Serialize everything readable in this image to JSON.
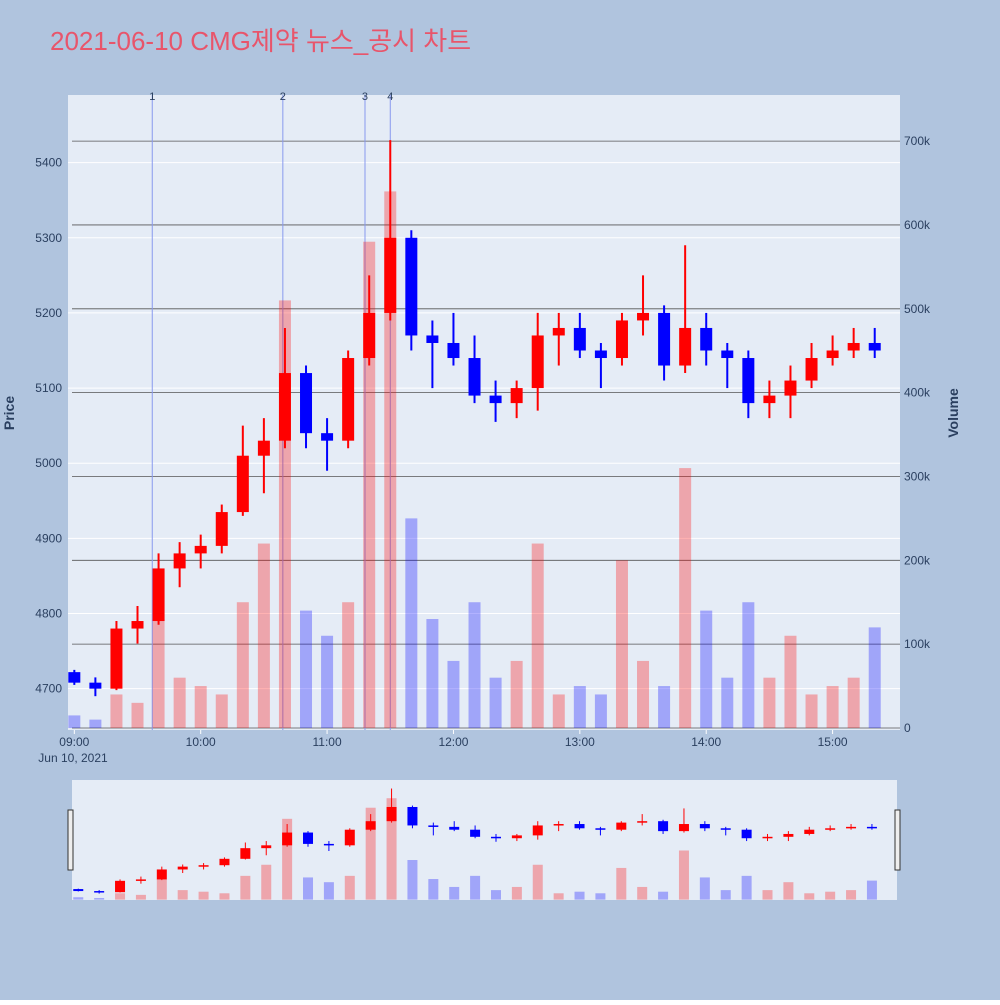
{
  "chart_data": {
    "type": "candlestick",
    "title": "2021-06-10 CMG제약 뉴스_공시 차트",
    "y_title": "Price",
    "y2_title": "Volume",
    "x_date_label": "Jun 10, 2021",
    "increasing_color": "#ff0000",
    "decreasing_color": "#0000ff",
    "x": [
      "09:00",
      "09:10",
      "09:20",
      "09:30",
      "09:40",
      "09:50",
      "10:00",
      "10:10",
      "10:20",
      "10:30",
      "10:40",
      "10:50",
      "11:00",
      "11:10",
      "11:20",
      "11:30",
      "11:40",
      "11:50",
      "12:00",
      "12:10",
      "12:20",
      "12:30",
      "12:40",
      "12:50",
      "13:00",
      "13:10",
      "13:20",
      "13:30",
      "13:40",
      "13:50",
      "14:00",
      "14:10",
      "14:20",
      "14:30",
      "14:40",
      "14:50",
      "15:00",
      "15:10",
      "15:20"
    ],
    "open": [
      4722,
      4708,
      4700,
      4780,
      4790,
      4860,
      4880,
      4890,
      4935,
      5010,
      5030,
      5120,
      5040,
      5030,
      5140,
      5200,
      5300,
      5170,
      5160,
      5140,
      5090,
      5080,
      5100,
      5170,
      5180,
      5150,
      5140,
      5190,
      5200,
      5130,
      5180,
      5150,
      5140,
      5080,
      5090,
      5110,
      5140,
      5150,
      5160
    ],
    "high": [
      4725,
      4715,
      4790,
      4810,
      4880,
      4895,
      4905,
      4945,
      5050,
      5060,
      5180,
      5130,
      5060,
      5150,
      5250,
      5430,
      5310,
      5190,
      5200,
      5170,
      5110,
      5110,
      5200,
      5200,
      5200,
      5160,
      5200,
      5250,
      5210,
      5290,
      5200,
      5160,
      5150,
      5110,
      5130,
      5160,
      5170,
      5180,
      5180
    ],
    "low": [
      4705,
      4690,
      4698,
      4760,
      4785,
      4835,
      4860,
      4880,
      4930,
      4960,
      5020,
      5020,
      4990,
      5020,
      5130,
      5190,
      5150,
      5100,
      5130,
      5080,
      5055,
      5060,
      5070,
      5130,
      5140,
      5100,
      5130,
      5170,
      5110,
      5120,
      5130,
      5100,
      5060,
      5060,
      5060,
      5100,
      5130,
      5140,
      5140
    ],
    "close": [
      4708,
      4700,
      4780,
      4790,
      4860,
      4880,
      4890,
      4935,
      5010,
      5030,
      5120,
      5040,
      5030,
      5140,
      5200,
      5300,
      5170,
      5160,
      5140,
      5090,
      5080,
      5100,
      5170,
      5180,
      5150,
      5140,
      5190,
      5200,
      5130,
      5180,
      5150,
      5140,
      5080,
      5090,
      5110,
      5140,
      5150,
      5160,
      5150
    ],
    "volume": [
      15000,
      10000,
      40000,
      30000,
      130000,
      60000,
      50000,
      40000,
      150000,
      220000,
      510000,
      140000,
      110000,
      150000,
      580000,
      640000,
      250000,
      130000,
      80000,
      150000,
      60000,
      80000,
      220000,
      40000,
      50000,
      40000,
      200000,
      80000,
      50000,
      310000,
      140000,
      60000,
      150000,
      60000,
      110000,
      40000,
      50000,
      60000,
      120000
    ],
    "xlim": [
      "08:57",
      "15:32"
    ],
    "xticks": [
      "09:00",
      "10:00",
      "11:00",
      "12:00",
      "13:00",
      "14:00",
      "15:00"
    ],
    "ylim": [
      4645,
      5490
    ],
    "yticks": [
      4700,
      4800,
      4900,
      5000,
      5100,
      5200,
      5300,
      5400
    ],
    "y2lim": [
      -2400,
      755000
    ],
    "y2ticks": [
      0,
      {
        "value": 100000,
        "label": "100k"
      },
      {
        "value": 200000,
        "label": "200k"
      },
      {
        "value": 300000,
        "label": "300k"
      },
      {
        "value": 400000,
        "label": "400k"
      },
      {
        "value": 500000,
        "label": "500k"
      },
      {
        "value": 600000,
        "label": "600k"
      },
      {
        "value": 700000,
        "label": "700k"
      }
    ],
    "news": [
      {
        "x": "09:37",
        "label": "1"
      },
      {
        "x": "10:39",
        "label": "2"
      },
      {
        "x": "11:18",
        "label": "3"
      },
      {
        "x": "11:30",
        "label": "4"
      }
    ],
    "grid": true,
    "rangeslider": true
  }
}
